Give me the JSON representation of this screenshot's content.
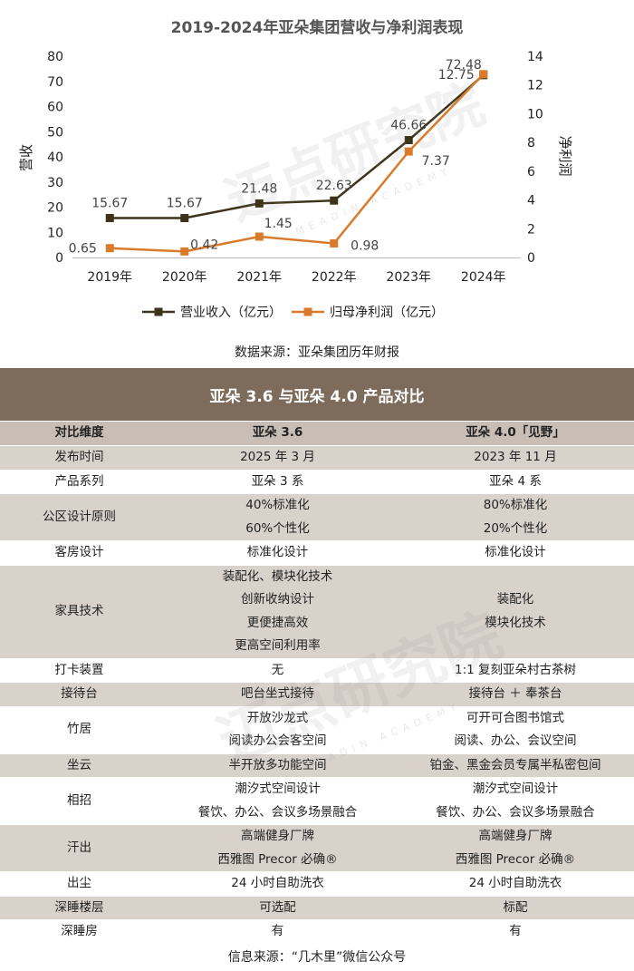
{
  "chart_data": {
    "type": "line",
    "title": "2019-2024年亚朵集团营收与净利润表现",
    "categories": [
      "2019年",
      "2020年",
      "2021年",
      "2022年",
      "2023年",
      "2024年"
    ],
    "left_axis": {
      "label": "营收",
      "range": [
        0,
        80
      ],
      "ticks": [
        "0",
        "10",
        "20",
        "30",
        "40",
        "50",
        "60",
        "70",
        "80"
      ]
    },
    "right_axis": {
      "label": "净利润",
      "range": [
        0,
        14
      ],
      "ticks": [
        "0",
        "2",
        "4",
        "6",
        "8",
        "10",
        "12",
        "14"
      ]
    },
    "series": [
      {
        "name": "营业收入（亿元）",
        "axis": "left",
        "color": "#3d3318",
        "marker": "square",
        "values": [
          15.67,
          15.67,
          21.48,
          22.63,
          46.66,
          72.48
        ],
        "labels": [
          "15.67",
          "15.67",
          "21.48",
          "22.63",
          "46.66",
          "72.48"
        ]
      },
      {
        "name": "归母净利润（亿元）",
        "axis": "right",
        "color": "#d97b2a",
        "marker": "square",
        "values": [
          0.65,
          0.42,
          1.45,
          0.98,
          7.37,
          12.75
        ],
        "labels": [
          "0.65",
          "0.42",
          "1.45",
          "0.98",
          "7.37",
          "12.75"
        ]
      }
    ],
    "legend_position": "bottom",
    "grid": false
  },
  "chart_source": "数据来源：亚朵集团历年财报",
  "watermark": {
    "main": "迈点研究院",
    "sub": "MEADIN ACADEMY"
  },
  "table": {
    "title": "亚朵 3.6 与亚朵 4.0 产品对比",
    "headers": [
      "对比维度",
      "亚朵 3.6",
      "亚朵 4.0「见野」"
    ],
    "rows": [
      {
        "dim": "发布时间",
        "a": [
          "2025 年 3 月"
        ],
        "b": [
          "2023 年 11 月"
        ]
      },
      {
        "dim": "产品系列",
        "a": [
          "亚朵 3 系"
        ],
        "b": [
          "亚朵 4 系"
        ]
      },
      {
        "dim": "公区设计原则",
        "a": [
          "40%标准化",
          "60%个性化"
        ],
        "b": [
          "80%标准化",
          "20%个性化"
        ]
      },
      {
        "dim": "客房设计",
        "a": [
          "标准化设计"
        ],
        "b": [
          "标准化设计"
        ]
      },
      {
        "dim": "家具技术",
        "a": [
          "装配化、模块化技术",
          "创新收纳设计",
          "更便捷高效",
          "更高空间利用率"
        ],
        "b": [
          "装配化",
          "模块化技术"
        ]
      },
      {
        "dim": "打卡装置",
        "a": [
          "无"
        ],
        "b": [
          "1:1 复刻亚朵村古茶树"
        ]
      },
      {
        "dim": "接待台",
        "a": [
          "吧台坐式接待"
        ],
        "b": [
          "接待台 ＋ 奉茶台"
        ]
      },
      {
        "dim": "竹居",
        "a": [
          "开放沙龙式",
          "阅读办公会客空间"
        ],
        "b": [
          "可开可合图书馆式",
          "阅读、办公、会议空间"
        ]
      },
      {
        "dim": "坐云",
        "a": [
          "半开放多功能空间"
        ],
        "b": [
          "铂金、黑金会员专属半私密包间"
        ]
      },
      {
        "dim": "相招",
        "a": [
          "潮汐式空间设计",
          "餐饮、办公、会议多场景融合"
        ],
        "b": [
          "潮汐式空间设计",
          "餐饮、办公、会议多场景融合"
        ]
      },
      {
        "dim": "汗出",
        "a": [
          "高端健身厂牌",
          "西雅图 Precor 必确®"
        ],
        "b": [
          "高端健身厂牌",
          "西雅图 Precor 必确®"
        ]
      },
      {
        "dim": "出尘",
        "a": [
          "24 小时自助洗衣"
        ],
        "b": [
          "24 小时自助洗衣"
        ]
      },
      {
        "dim": "深睡楼层",
        "a": [
          "可选配"
        ],
        "b": [
          "标配"
        ]
      },
      {
        "dim": "深睡房",
        "a": [
          "有"
        ],
        "b": [
          "有"
        ]
      }
    ]
  },
  "footer": "信息来源：“几木里”微信公众号"
}
